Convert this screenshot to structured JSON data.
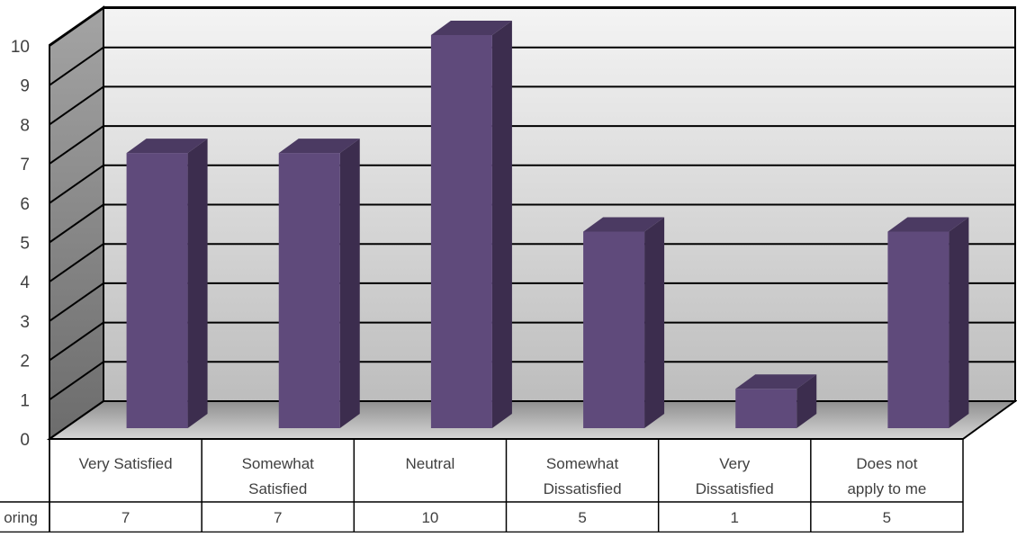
{
  "chart_data": {
    "type": "bar",
    "categories": [
      "Very Satisfied",
      "Somewhat Satisfied",
      "Neutral",
      "Somewhat Dissatisfied",
      "Very Dissatisfied",
      "Does not apply to me"
    ],
    "category_lines": [
      [
        "Very Satisfied"
      ],
      [
        "Somewhat",
        "Satisfied"
      ],
      [
        "Neutral"
      ],
      [
        "Somewhat",
        "Dissatisfied"
      ],
      [
        "Very",
        "Dissatisfied"
      ],
      [
        "Does not",
        "apply to me"
      ]
    ],
    "series": [
      {
        "name": "oring",
        "values": [
          7,
          7,
          10,
          5,
          1,
          5
        ]
      }
    ],
    "values": [
      7,
      7,
      10,
      5,
      1,
      5
    ],
    "ylim": [
      0,
      10
    ],
    "yticks": [
      "0",
      "1",
      "2",
      "3",
      "4",
      "5",
      "6",
      "7",
      "8",
      "9",
      "10"
    ],
    "grid": true,
    "legend": "none",
    "data_table": true,
    "style": "3d-column",
    "colors": {
      "bar_front": "#5f4a7b",
      "bar_side": "#3c2d4e",
      "bar_top": "#4b3a62",
      "grid": "#000000"
    }
  }
}
